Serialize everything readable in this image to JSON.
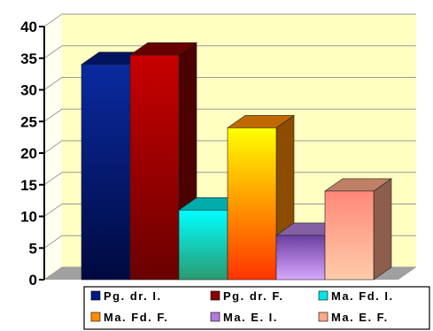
{
  "chart_data": {
    "type": "bar",
    "style": "3d",
    "categories": [
      "Pg. dr. I.",
      "Pg. dr. F.",
      "Ma. Fd. I.",
      "Ma. Fd. F.",
      "Ma. E. I.",
      "Ma. E. F."
    ],
    "values": [
      34,
      35.5,
      11,
      24,
      7,
      14
    ],
    "ylim": [
      0,
      40
    ],
    "yticks": [
      "0",
      "5",
      "10",
      "15",
      "20",
      "25",
      "30",
      "35",
      "40"
    ],
    "grid": true,
    "legend": "bottom",
    "title": "",
    "xlabel": "",
    "ylabel": "",
    "colors": [
      "#001a80",
      "#8b0000",
      "#00e5e5",
      "#ff8c00",
      "#b07ed9",
      "#ffaa88"
    ]
  },
  "plot_colors": {
    "wall": "#ffffc2",
    "floor": "#a0a0a0",
    "grid": "#9a9a9a"
  }
}
